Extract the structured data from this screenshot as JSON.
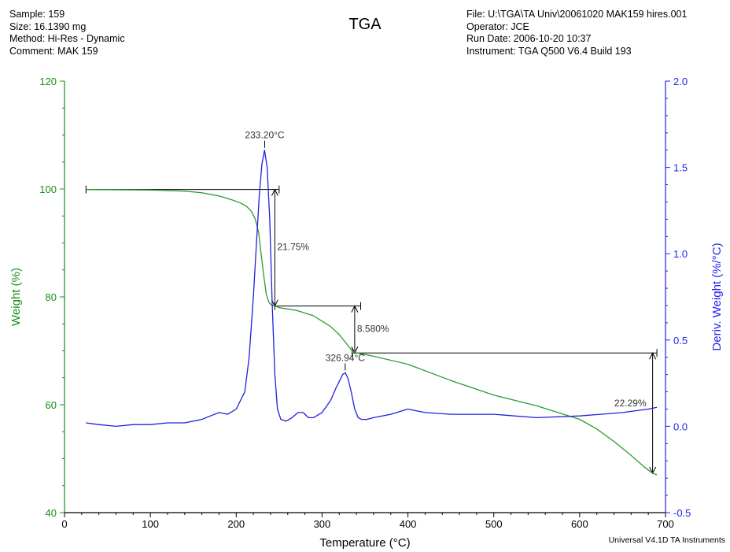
{
  "header": {
    "left": {
      "sample": "Sample: 159",
      "size": "Size:  16.1390 mg",
      "method": "Method: Hi-Res - Dynamic",
      "comment": "Comment: MAK 159"
    },
    "right": {
      "file": "File: U:\\TGA\\TA Univ\\20061020 MAK159 hires.001",
      "operator": "Operator: JCE",
      "run_date": "Run Date: 2006-10-20 10:37",
      "instrument": "Instrument: TGA Q500 V6.4 Build 193"
    }
  },
  "footer": {
    "credit": "Universal V4.1D TA Instruments"
  },
  "colors": {
    "weight": "#2e9a2e",
    "deriv": "#2020e0",
    "axis_left": "#1a8c1a",
    "axis_right": "#2222ee",
    "annotation": "#000000"
  },
  "chart_data": {
    "type": "line",
    "title": "TGA",
    "xlabel": "Temperature (°C)",
    "ylabel_left": "Weight (%)",
    "ylabel_right": "Deriv. Weight (%/°C)",
    "xlim": [
      0,
      700
    ],
    "ylim_left": [
      40,
      120
    ],
    "ylim_right": [
      -0.5,
      2.0
    ],
    "x_ticks": [
      0,
      100,
      200,
      300,
      400,
      500,
      600,
      700
    ],
    "y_ticks_left": [
      40,
      60,
      80,
      100,
      120
    ],
    "y_ticks_right": [
      "-0.5",
      "0.0",
      "0.5",
      "1.0",
      "1.5",
      "2.0"
    ],
    "grid": false,
    "series": [
      {
        "name": "Weight (%)",
        "axis": "left",
        "x": [
          25,
          60,
          100,
          140,
          160,
          180,
          195,
          205,
          212,
          218,
          222,
          226,
          229,
          232,
          235,
          238,
          241,
          244,
          247,
          250,
          270,
          290,
          310,
          320,
          330,
          335,
          340,
          360,
          400,
          450,
          500,
          550,
          600,
          620,
          640,
          660,
          675,
          685,
          690
        ],
        "y": [
          99.9,
          99.85,
          99.8,
          99.6,
          99.3,
          98.7,
          98.0,
          97.4,
          96.8,
          95.8,
          94.5,
          92.0,
          88.0,
          84.0,
          80.5,
          79.0,
          78.5,
          78.3,
          78.2,
          78.0,
          77.5,
          76.5,
          74.5,
          73.0,
          71.0,
          70.0,
          69.6,
          69.0,
          67.5,
          64.5,
          61.8,
          59.8,
          57.3,
          55.5,
          53.2,
          50.6,
          48.5,
          47.3,
          47.0
        ]
      },
      {
        "name": "Deriv. Weight (%/°C)",
        "axis": "right",
        "x": [
          25,
          40,
          60,
          80,
          100,
          120,
          140,
          160,
          170,
          180,
          190,
          200,
          210,
          215,
          220,
          224,
          227,
          230,
          233,
          236,
          239,
          242,
          245,
          248,
          252,
          258,
          265,
          272,
          278,
          284,
          290,
          300,
          310,
          316,
          320,
          324,
          327,
          330,
          334,
          338,
          342,
          346,
          352,
          360,
          380,
          400,
          410,
          420,
          450,
          500,
          550,
          600,
          650,
          680,
          690
        ],
        "y": [
          0.02,
          0.01,
          0.0,
          0.01,
          0.01,
          0.02,
          0.02,
          0.04,
          0.06,
          0.08,
          0.07,
          0.1,
          0.2,
          0.4,
          0.75,
          1.1,
          1.35,
          1.52,
          1.6,
          1.5,
          1.2,
          0.7,
          0.3,
          0.1,
          0.04,
          0.03,
          0.05,
          0.08,
          0.08,
          0.05,
          0.05,
          0.08,
          0.15,
          0.22,
          0.26,
          0.3,
          0.31,
          0.28,
          0.2,
          0.1,
          0.05,
          0.04,
          0.04,
          0.05,
          0.07,
          0.1,
          0.09,
          0.08,
          0.07,
          0.07,
          0.05,
          0.06,
          0.08,
          0.1,
          0.11
        ]
      }
    ],
    "step_markers": [
      {
        "x1": 25,
        "x2": 250,
        "y": 99.9,
        "axis": "left"
      },
      {
        "x1": 245,
        "x2": 345,
        "y": 78.3,
        "axis": "left"
      },
      {
        "x1": 335,
        "x2": 690,
        "y": 69.6,
        "axis": "left"
      }
    ],
    "step_arrows": [
      {
        "x": 245,
        "y_top": 99.9,
        "y_bottom": 78.3,
        "label": "21.75%"
      },
      {
        "x": 338,
        "y_top": 78.3,
        "y_bottom": 69.6,
        "label": "8.580%"
      },
      {
        "x": 685,
        "y_top": 69.6,
        "y_bottom": 47.3,
        "label": "22.29%"
      }
    ],
    "peak_annotations": [
      {
        "x": 233.2,
        "y": 1.6,
        "axis": "right",
        "label": "233.20°C"
      },
      {
        "x": 326.94,
        "y": 0.31,
        "axis": "right",
        "label": "326.94°C"
      }
    ]
  }
}
